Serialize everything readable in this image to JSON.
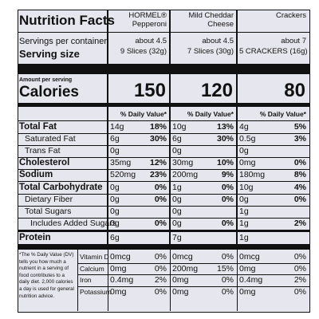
{
  "header": {
    "title": "Nutrition Facts",
    "products": [
      "HORMEL® Pepperoni",
      "Mild Cheddar Cheese",
      "Crackers"
    ]
  },
  "servings": {
    "label": "Servings per container",
    "values": [
      "about 4.5",
      "about 4.5",
      "about 7"
    ]
  },
  "serving_size": {
    "label": "Serving size",
    "values": [
      "9 Slices (32g)",
      "7 Slices (30g)",
      "5 CRACKERS (16g)"
    ]
  },
  "calories": {
    "caption": "Amount per serving",
    "label": "Calories",
    "values": [
      150,
      120,
      80
    ]
  },
  "daily_value_heading": [
    "% Daily Value*",
    "% Daily Value*",
    "% Daily Value*"
  ],
  "nutrients": [
    {
      "label": "Total Fat",
      "bold": true,
      "indent": 0,
      "amounts": [
        "14g",
        "10g",
        "4g"
      ],
      "dv": [
        "18%",
        "13%",
        "5%"
      ]
    },
    {
      "label": "Saturated Fat",
      "bold": false,
      "indent": 1,
      "amounts": [
        "6g",
        "6g",
        "0.5g"
      ],
      "dv": [
        "30%",
        "30%",
        "3%"
      ]
    },
    {
      "label": "Trans Fat",
      "bold": false,
      "indent": 1,
      "amounts": [
        "0g",
        "0g",
        "0g"
      ],
      "dv": [
        null,
        null,
        null
      ]
    },
    {
      "label": "Cholesterol",
      "bold": true,
      "indent": 0,
      "amounts": [
        "35mg",
        "30mg",
        "0mg"
      ],
      "dv": [
        "12%",
        "10%",
        "0%"
      ]
    },
    {
      "label": "Sodium",
      "bold": true,
      "indent": 0,
      "amounts": [
        "520mg",
        "200mg",
        "180mg"
      ],
      "dv": [
        "23%",
        "9%",
        "8%"
      ]
    },
    {
      "label": "Total Carbohydrate",
      "bold": true,
      "indent": 0,
      "amounts": [
        "0g",
        "1g",
        "10g"
      ],
      "dv": [
        "0%",
        "0%",
        "4%"
      ]
    },
    {
      "label": "Dietary Fiber",
      "bold": false,
      "indent": 1,
      "amounts": [
        "0g",
        "0g",
        "0g"
      ],
      "dv": [
        "0%",
        "0%",
        "0%"
      ]
    },
    {
      "label": "Total Sugars",
      "bold": false,
      "indent": 1,
      "amounts": [
        "0g",
        "0g",
        "1g"
      ],
      "dv": [
        null,
        null,
        null
      ]
    },
    {
      "label": "Includes Added Sugars",
      "bold": false,
      "indent": 2,
      "amounts": [
        "0g",
        "0g",
        "1g"
      ],
      "dv": [
        "0%",
        "0%",
        "2%"
      ]
    },
    {
      "label": "Protein",
      "bold": true,
      "indent": 0,
      "amounts": [
        "6g",
        "7g",
        "1g"
      ],
      "dv": [
        null,
        null,
        null
      ]
    }
  ],
  "vitamins": [
    {
      "label": "Vitamin D",
      "amounts": [
        "0mcg",
        "0mcg",
        "0mcg"
      ],
      "dv": [
        "0%",
        "0%",
        "0%"
      ]
    },
    {
      "label": "Calcium",
      "amounts": [
        "0mg",
        "200mg",
        "0mg"
      ],
      "dv": [
        "0%",
        "15%",
        "0%"
      ]
    },
    {
      "label": "Iron",
      "amounts": [
        "0.4mg",
        "0mg",
        "0.4mg"
      ],
      "dv": [
        "2%",
        "0%",
        "2%"
      ]
    },
    {
      "label": "Potassium",
      "amounts": [
        "0mg",
        "0mg",
        "0mg"
      ],
      "dv": [
        "0%",
        "0%",
        "0%"
      ]
    }
  ],
  "footnote": "*The % Daily Value (DV) tells you how much a nutrient in a serving of food contributes to a daily diet. 2,000 calories a day is used for general nutrition advice."
}
